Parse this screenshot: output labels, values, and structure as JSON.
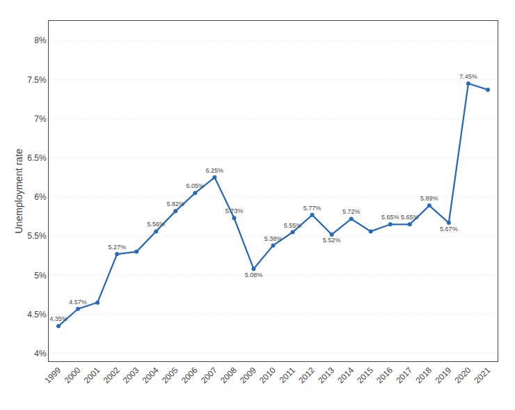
{
  "chart_data": {
    "type": "line",
    "x": [
      1999,
      2000,
      2001,
      2002,
      2003,
      2004,
      2005,
      2006,
      2007,
      2008,
      2009,
      2010,
      2011,
      2012,
      2013,
      2014,
      2015,
      2016,
      2017,
      2018,
      2019,
      2020,
      2021
    ],
    "values": [
      4.35,
      4.57,
      4.65,
      5.27,
      5.3,
      5.56,
      5.82,
      6.05,
      6.25,
      5.73,
      5.08,
      5.38,
      5.55,
      5.77,
      5.52,
      5.72,
      5.56,
      5.65,
      5.65,
      5.89,
      5.67,
      7.45,
      7.37
    ],
    "value_labels": [
      "4.35%",
      "4.57%",
      null,
      "5.27%",
      null,
      "5.56%",
      "5.82%",
      "6.05%",
      "6.25%",
      "5.73%",
      "5.08%",
      "5.38%",
      "5.55%",
      "5.77%",
      "5.52%",
      "5.72%",
      null,
      "5.65%",
      "5.65%",
      "5.89%",
      "5.67%",
      "7.45%",
      null
    ],
    "data_labels": true,
    "ylabel": "Unemployment rate",
    "xlim": [
      1998.5,
      2021.5
    ],
    "xticks": [
      1999,
      2000,
      2001,
      2002,
      2003,
      2004,
      2005,
      2006,
      2007,
      2008,
      2009,
      2010,
      2011,
      2012,
      2013,
      2014,
      2015,
      2016,
      2017,
      2018,
      2019,
      2020,
      2021
    ],
    "ylim": [
      3.9,
      8.25
    ],
    "yticks": [
      {
        "value": 4.0,
        "label": "4%"
      },
      {
        "value": 4.5,
        "label": "4.5%"
      },
      {
        "value": 5.0,
        "label": "5%"
      },
      {
        "value": 5.5,
        "label": "5.5%"
      },
      {
        "value": 6.0,
        "label": "6%"
      },
      {
        "value": 6.5,
        "label": "6.5%"
      },
      {
        "value": 7.0,
        "label": "7%"
      },
      {
        "value": 7.5,
        "label": "7.5%"
      },
      {
        "value": 8.0,
        "label": "8%"
      }
    ],
    "grid": true,
    "color": "#2a6aba",
    "marker": "circle"
  }
}
